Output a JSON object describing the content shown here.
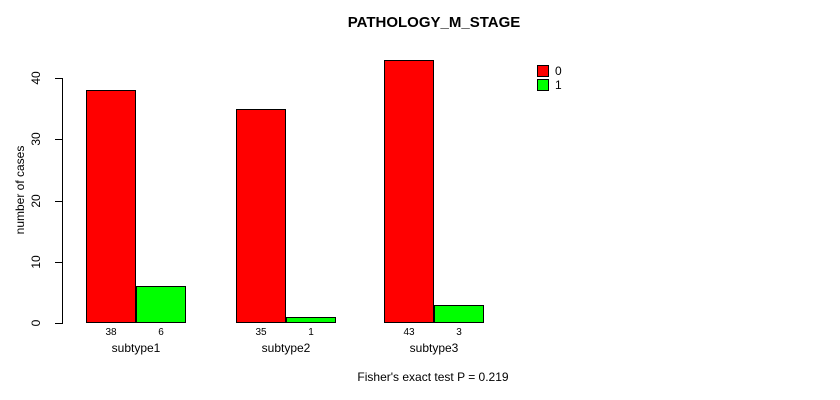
{
  "title": "PATHOLOGY_M_STAGE",
  "footer": "Fisher's exact test P = 0.219",
  "colors": {
    "series0": "#ff0000",
    "series1": "#00ff00",
    "axis": "#000000",
    "background": "#ffffff"
  },
  "chart_data": {
    "type": "bar",
    "title": "PATHOLOGY_M_STAGE",
    "categories": [
      "subtype1",
      "subtype2",
      "subtype3"
    ],
    "series": [
      {
        "name": "0",
        "color": "#ff0000",
        "values": [
          38,
          35,
          43
        ]
      },
      {
        "name": "1",
        "color": "#00ff00",
        "values": [
          6,
          1,
          3
        ]
      }
    ],
    "bar_value_labels": [
      [
        "38",
        "6"
      ],
      [
        "35",
        "1"
      ],
      [
        "43",
        "3"
      ]
    ],
    "xlabel": "",
    "ylabel": "number of cases",
    "ylim": [
      0,
      43
    ],
    "yticks": [
      0,
      10,
      20,
      30,
      40
    ],
    "grid": false,
    "legend_position": "top-right",
    "annotation": "Fisher's exact test P = 0.219"
  }
}
